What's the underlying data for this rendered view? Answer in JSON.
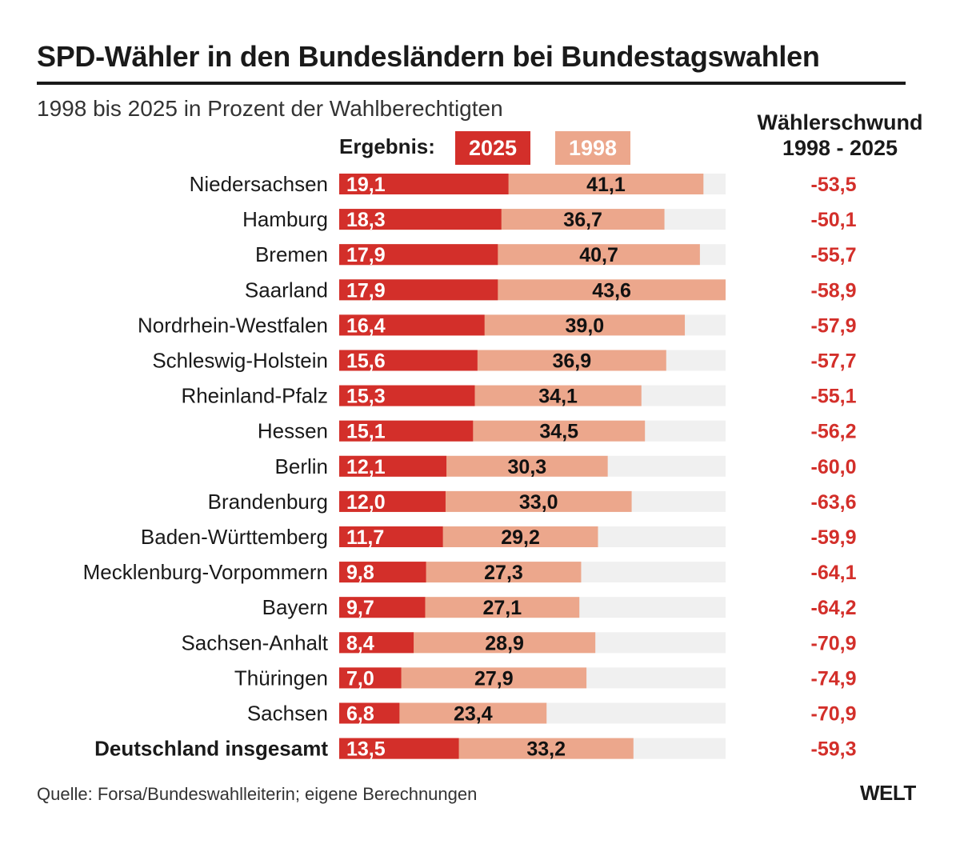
{
  "header": {
    "title": "SPD-Wähler in den Bundesländern bei Bundestagswahlen",
    "subtitle": "1998 bis 2025 in Prozent der Wahlberechtigten",
    "right_header_line1": "Wählerschwund",
    "right_header_line2": "1998 - 2025"
  },
  "legend": {
    "label": "Ergebnis:",
    "items": [
      {
        "label": "2025",
        "color": "#d32f2a"
      },
      {
        "label": "1998",
        "color": "#eca78c"
      }
    ]
  },
  "colors": {
    "bar_2025": "#d32f2a",
    "bar_1998": "#eca78c",
    "track": "#f0f0f0",
    "change_text": "#d32f2a"
  },
  "chart_data": {
    "type": "bar",
    "orientation": "horizontal",
    "categories": [
      "Niedersachsen",
      "Hamburg",
      "Bremen",
      "Saarland",
      "Nordrhein-Westfalen",
      "Schleswig-Holstein",
      "Rheinland-Pfalz",
      "Hessen",
      "Berlin",
      "Brandenburg",
      "Baden-Württemberg",
      "Mecklenburg-Vorpommern",
      "Bayern",
      "Sachsen-Anhalt",
      "Thüringen",
      "Sachsen",
      "Deutschland insgesamt"
    ],
    "series": [
      {
        "name": "2025",
        "values": [
          19.1,
          18.3,
          17.9,
          17.9,
          16.4,
          15.6,
          15.3,
          15.1,
          12.1,
          12.0,
          11.7,
          9.8,
          9.7,
          8.4,
          7.0,
          6.8,
          13.5
        ],
        "labels": [
          "19,1",
          "18,3",
          "17,9",
          "17,9",
          "16,4",
          "15,6",
          "15,3",
          "15,1",
          "12,1",
          "12,0",
          "11,7",
          "9,8",
          "9,7",
          "8,4",
          "7,0",
          "6,8",
          "13,5"
        ]
      },
      {
        "name": "1998",
        "values": [
          41.1,
          36.7,
          40.7,
          43.6,
          39.0,
          36.9,
          34.1,
          34.5,
          30.3,
          33.0,
          29.2,
          27.3,
          27.1,
          28.9,
          27.9,
          23.4,
          33.2
        ],
        "labels": [
          "41,1",
          "36,7",
          "40,7",
          "43,6",
          "39,0",
          "36,9",
          "34,1",
          "34,5",
          "30,3",
          "33,0",
          "29,2",
          "27,3",
          "27,1",
          "28,9",
          "27,9",
          "23,4",
          "33,2"
        ]
      }
    ],
    "change": {
      "title": "Wählerschwund 1998 - 2025",
      "values": [
        -53.5,
        -50.1,
        -55.7,
        -58.9,
        -57.9,
        -57.7,
        -55.1,
        -56.2,
        -60.0,
        -63.6,
        -59.9,
        -64.1,
        -64.2,
        -70.9,
        -74.9,
        -70.9,
        -59.3
      ],
      "labels": [
        "-53,5",
        "-50,1",
        "-55,7",
        "-58,9",
        "-57,9",
        "-57,7",
        "-55,1",
        "-56,2",
        "-60,0",
        "-63,6",
        "-59,9",
        "-64,1",
        "-64,2",
        "-70,9",
        "-74,9",
        "-70,9",
        "-59,3"
      ]
    },
    "xlim": [
      0,
      43.6
    ],
    "total_category": "Deutschland insgesamt"
  },
  "footer": {
    "source": "Quelle: Forsa/Bundeswahlleiterin; eigene Berechnungen",
    "logo": "WELT"
  }
}
